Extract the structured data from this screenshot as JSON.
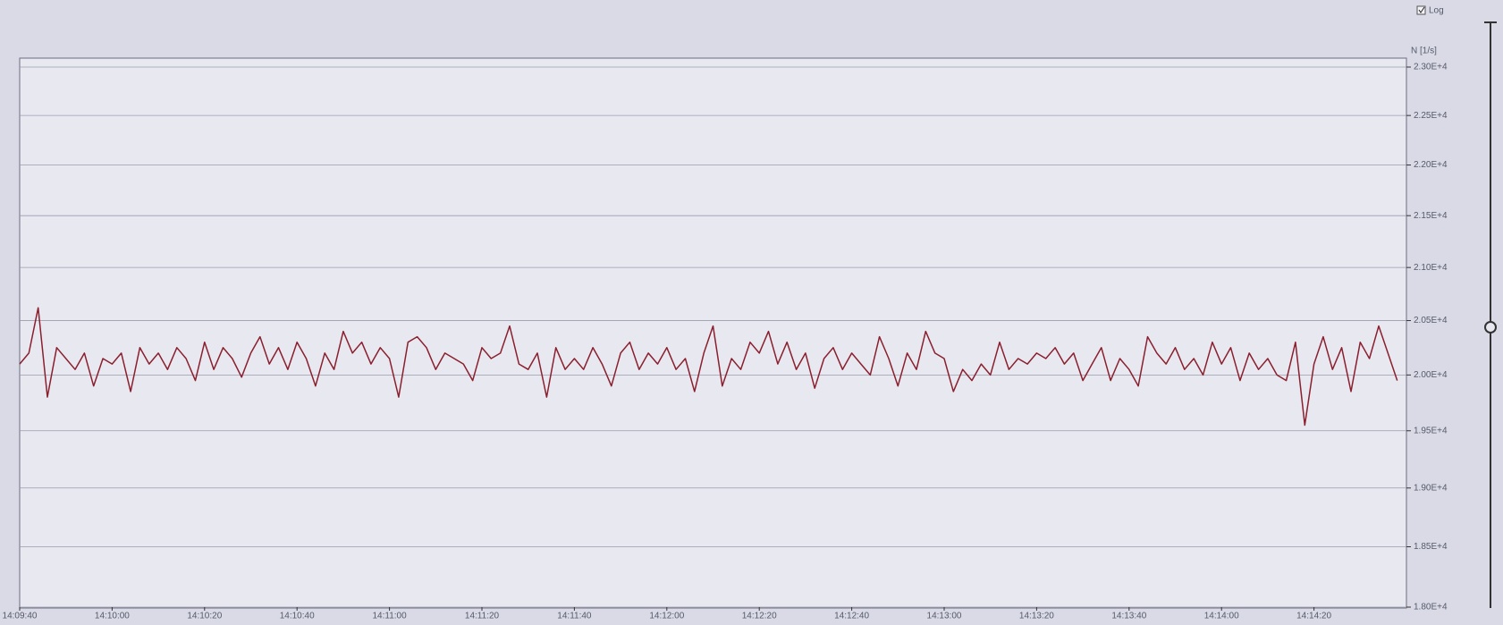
{
  "chart_data": {
    "type": "line",
    "y_label": "N [1/s]",
    "log_checkbox": "Log",
    "log": true,
    "grid": true,
    "color": "#8b1f2e",
    "x": [
      "14:09:40",
      "14:09:42",
      "14:09:44",
      "14:09:46",
      "14:09:48",
      "14:09:50",
      "14:09:52",
      "14:09:54",
      "14:09:56",
      "14:09:58",
      "14:10:00",
      "14:10:02",
      "14:10:04",
      "14:10:06",
      "14:10:08",
      "14:10:10",
      "14:10:12",
      "14:10:14",
      "14:10:16",
      "14:10:18",
      "14:10:20",
      "14:10:22",
      "14:10:24",
      "14:10:26",
      "14:10:28",
      "14:10:30",
      "14:10:32",
      "14:10:34",
      "14:10:36",
      "14:10:38",
      "14:10:40",
      "14:10:42",
      "14:10:44",
      "14:10:46",
      "14:10:48",
      "14:10:50",
      "14:10:52",
      "14:10:54",
      "14:10:56",
      "14:10:58",
      "14:11:00",
      "14:11:02",
      "14:11:04",
      "14:11:06",
      "14:11:08",
      "14:11:10",
      "14:11:12",
      "14:11:14",
      "14:11:16",
      "14:11:18",
      "14:11:20",
      "14:11:22",
      "14:11:24",
      "14:11:26",
      "14:11:28",
      "14:11:30",
      "14:11:32",
      "14:11:34",
      "14:11:36",
      "14:11:38",
      "14:11:40",
      "14:11:42",
      "14:11:44",
      "14:11:46",
      "14:11:48",
      "14:11:50",
      "14:11:52",
      "14:11:54",
      "14:11:56",
      "14:11:58",
      "14:12:00",
      "14:12:02",
      "14:12:04",
      "14:12:06",
      "14:12:08",
      "14:12:10",
      "14:12:12",
      "14:12:14",
      "14:12:16",
      "14:12:18",
      "14:12:20",
      "14:12:22",
      "14:12:24",
      "14:12:26",
      "14:12:28",
      "14:12:30",
      "14:12:32",
      "14:12:34",
      "14:12:36",
      "14:12:38",
      "14:12:40",
      "14:12:42",
      "14:12:44",
      "14:12:46",
      "14:12:48",
      "14:12:50",
      "14:12:52",
      "14:12:54",
      "14:12:56",
      "14:12:58",
      "14:13:00",
      "14:13:02",
      "14:13:04",
      "14:13:06",
      "14:13:08",
      "14:13:10",
      "14:13:12",
      "14:13:14",
      "14:13:16",
      "14:13:18",
      "14:13:20",
      "14:13:22",
      "14:13:24",
      "14:13:26",
      "14:13:28",
      "14:13:30",
      "14:13:32",
      "14:13:34",
      "14:13:36",
      "14:13:38",
      "14:13:40",
      "14:13:42",
      "14:13:44",
      "14:13:46",
      "14:13:48",
      "14:13:50",
      "14:13:52",
      "14:13:54",
      "14:13:56",
      "14:13:58",
      "14:14:00",
      "14:14:02",
      "14:14:04",
      "14:14:06",
      "14:14:08",
      "14:14:10",
      "14:14:12",
      "14:14:14",
      "14:14:16",
      "14:14:18",
      "14:14:20",
      "14:14:22",
      "14:14:24",
      "14:14:26",
      "14:14:28",
      "14:14:30",
      "14:14:32",
      "14:14:34",
      "14:14:36",
      "14:14:38"
    ],
    "values": [
      20100,
      20200,
      20620,
      19800,
      20250,
      20150,
      20050,
      20200,
      19900,
      20150,
      20100,
      20200,
      19850,
      20250,
      20100,
      20200,
      20050,
      20250,
      20150,
      19950,
      20300,
      20050,
      20250,
      20150,
      19980,
      20200,
      20350,
      20100,
      20250,
      20050,
      20300,
      20150,
      19900,
      20200,
      20050,
      20400,
      20200,
      20300,
      20100,
      20250,
      20150,
      19800,
      20300,
      20350,
      20250,
      20050,
      20200,
      20150,
      20100,
      19950,
      20250,
      20150,
      20200,
      20450,
      20100,
      20050,
      20200,
      19800,
      20250,
      20050,
      20150,
      20050,
      20250,
      20100,
      19900,
      20200,
      20300,
      20050,
      20200,
      20100,
      20250,
      20050,
      20150,
      19850,
      20200,
      20450,
      19900,
      20150,
      20050,
      20300,
      20200,
      20400,
      20100,
      20300,
      20050,
      20200,
      19880,
      20150,
      20250,
      20050,
      20200,
      20100,
      20000,
      20350,
      20150,
      19900,
      20200,
      20050,
      20400,
      20200,
      20150,
      19850,
      20050,
      19950,
      20100,
      20000,
      20300,
      20050,
      20150,
      20100,
      20200,
      20150,
      20250,
      20100,
      20200,
      19950,
      20100,
      20250,
      19950,
      20150,
      20050,
      19900,
      20350,
      20200,
      20100,
      20250,
      20050,
      20150,
      20000,
      20300,
      20100,
      20250,
      19950,
      20200,
      20050,
      20150,
      20000,
      19950,
      20300,
      19550,
      20100,
      20350,
      20050,
      20250,
      19850,
      20300,
      20150,
      20450,
      20200,
      19950
    ],
    "xlim": [
      "14:09:40",
      "14:14:40"
    ],
    "xticks": [
      "14:09:40",
      "14:10:00",
      "14:10:20",
      "14:10:40",
      "14:11:00",
      "14:11:20",
      "14:11:40",
      "14:12:00",
      "14:12:20",
      "14:12:40",
      "14:13:00",
      "14:13:20",
      "14:13:40",
      "14:14:00",
      "14:14:20"
    ],
    "ylim": [
      18000,
      23000
    ],
    "yticks": [
      {
        "value": 18000,
        "label": "1.80E+4"
      },
      {
        "value": 18500,
        "label": "1.85E+4"
      },
      {
        "value": 19000,
        "label": "1.90E+4"
      },
      {
        "value": 19500,
        "label": "1.95E+4"
      },
      {
        "value": 20000,
        "label": "2.00E+4"
      },
      {
        "value": 20500,
        "label": "2.05E+4"
      },
      {
        "value": 21000,
        "label": "2.10E+4"
      },
      {
        "value": 21500,
        "label": "2.15E+4"
      },
      {
        "value": 22000,
        "label": "2.20E+4"
      },
      {
        "value": 22500,
        "label": "2.25E+4"
      },
      {
        "value": 23000,
        "label": "2.30E+4"
      }
    ]
  }
}
